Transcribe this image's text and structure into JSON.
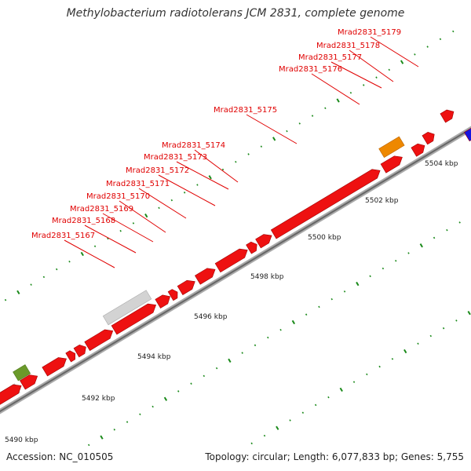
{
  "title": "Methylobacterium radiotolerans JCM 2831, complete genome",
  "footer": {
    "accession": "Accession: NC_010505",
    "summary": "Topology: circular; Length: 6,077,833 bp; Genes: 5,755"
  },
  "colors": {
    "gene": "#ee1111",
    "highlight": "#ee8800",
    "grey": "#d3d3d3",
    "green": "#6b9a2a",
    "blue": "#1515e0",
    "backbone": "#888888",
    "label": "#e00000",
    "tick": "#1a8a1a"
  },
  "genes": [
    {
      "label": "Mrad2831_5167"
    },
    {
      "label": "Mrad2831_5168"
    },
    {
      "label": "Mrad2831_5169"
    },
    {
      "label": "Mrad2831_5170"
    },
    {
      "label": "Mrad2831_5171"
    },
    {
      "label": "Mrad2831_5172"
    },
    {
      "label": "Mrad2831_5173"
    },
    {
      "label": "Mrad2831_5174"
    },
    {
      "label": "Mrad2831_5175"
    },
    {
      "label": "Mrad2831_5176"
    },
    {
      "label": "Mrad2831_5177"
    },
    {
      "label": "Mrad2831_5178"
    },
    {
      "label": "Mrad2831_5179"
    }
  ],
  "scale": {
    "unit": "kbp",
    "labels": [
      "5490 kbp",
      "5492 kbp",
      "5494 kbp",
      "5496 kbp",
      "5498 kbp",
      "5500 kbp",
      "5502 kbp",
      "5504 kbp"
    ]
  }
}
